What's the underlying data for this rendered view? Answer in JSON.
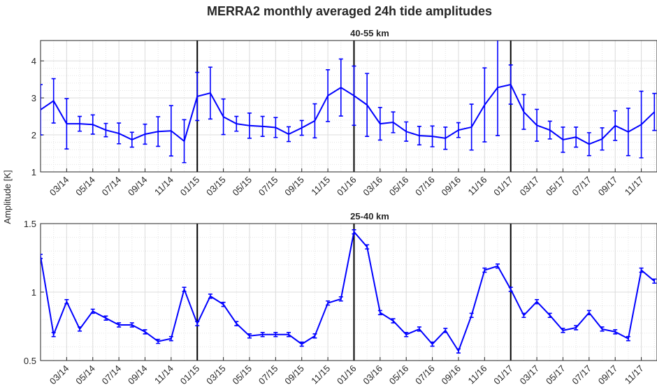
{
  "title": "MERRA2 monthly averaged 24h tide amplitudes",
  "ylabel": "Amplitude [K]",
  "chart_data": [
    {
      "type": "line",
      "subtitle": "40-55 km",
      "color": "#0000ff",
      "grid": true,
      "categories": [
        null,
        null,
        "03/14",
        null,
        "05/14",
        null,
        "07/14",
        null,
        "09/14",
        null,
        "11/14",
        null,
        "01/15",
        null,
        "03/15",
        null,
        "05/15",
        null,
        "07/15",
        null,
        "09/15",
        null,
        "11/15",
        null,
        "01/16",
        null,
        "03/16",
        null,
        "05/16",
        null,
        "07/16",
        null,
        "09/16",
        null,
        "11/16",
        null,
        "01/17",
        null,
        "03/17",
        null,
        "05/17",
        null,
        "07/17",
        null,
        "09/17",
        null,
        "11/17",
        null
      ],
      "values": [
        2.68,
        2.92,
        2.3,
        2.3,
        2.28,
        2.13,
        2.04,
        1.87,
        2.02,
        2.09,
        2.11,
        1.83,
        3.04,
        3.13,
        2.49,
        2.3,
        2.25,
        2.23,
        2.2,
        2.02,
        2.19,
        2.38,
        3.06,
        3.28,
        3.06,
        2.81,
        2.3,
        2.34,
        2.09,
        1.98,
        1.96,
        1.91,
        2.13,
        2.21,
        2.81,
        3.28,
        3.36,
        2.62,
        2.26,
        2.13,
        1.87,
        1.94,
        1.75,
        1.89,
        2.25,
        2.08,
        2.28,
        2.62
      ],
      "errors": [
        0.68,
        0.6,
        0.68,
        0.2,
        0.26,
        0.18,
        0.28,
        0.2,
        0.27,
        0.4,
        0.68,
        0.58,
        0.65,
        0.7,
        0.48,
        0.2,
        0.34,
        0.27,
        0.27,
        0.2,
        0.2,
        0.46,
        0.7,
        0.77,
        0.8,
        0.85,
        0.44,
        0.28,
        0.26,
        0.25,
        0.28,
        0.3,
        0.2,
        0.62,
        1.0,
        1.3,
        0.53,
        0.47,
        0.43,
        0.24,
        0.34,
        0.27,
        0.31,
        0.3,
        0.4,
        0.64,
        0.9,
        0.5
      ],
      "ylim": [
        1,
        4.55
      ],
      "yticks": [
        1,
        2,
        3,
        4
      ]
    },
    {
      "type": "line",
      "subtitle": "25-40 km",
      "color": "#0000ff",
      "grid": true,
      "categories": [
        null,
        null,
        "03/14",
        null,
        "05/14",
        null,
        "07/14",
        null,
        "09/14",
        null,
        "11/14",
        null,
        "01/15",
        null,
        "03/15",
        null,
        "05/15",
        null,
        "07/15",
        null,
        "09/15",
        null,
        "11/15",
        null,
        "01/16",
        null,
        "03/16",
        null,
        "05/16",
        null,
        "07/16",
        null,
        "09/16",
        null,
        "11/16",
        null,
        "01/17",
        null,
        "03/17",
        null,
        "05/17",
        null,
        "07/17",
        null,
        "09/17",
        null,
        "11/17",
        null
      ],
      "values": [
        1.26,
        0.69,
        0.93,
        0.73,
        0.86,
        0.81,
        0.76,
        0.76,
        0.71,
        0.64,
        0.66,
        1.02,
        0.77,
        0.97,
        0.91,
        0.77,
        0.68,
        0.69,
        0.69,
        0.69,
        0.62,
        0.68,
        0.92,
        0.95,
        1.44,
        1.33,
        0.85,
        0.79,
        0.69,
        0.73,
        0.62,
        0.72,
        0.57,
        0.83,
        1.16,
        1.19,
        1.02,
        0.83,
        0.93,
        0.83,
        0.72,
        0.74,
        0.85,
        0.73,
        0.71,
        0.66,
        1.16,
        1.08
      ],
      "errors": [
        0.015,
        0.015,
        0.015,
        0.015,
        0.015,
        0.015,
        0.015,
        0.015,
        0.015,
        0.015,
        0.015,
        0.015,
        0.015,
        0.015,
        0.015,
        0.015,
        0.015,
        0.015,
        0.015,
        0.015,
        0.015,
        0.015,
        0.015,
        0.015,
        0.015,
        0.015,
        0.015,
        0.015,
        0.015,
        0.015,
        0.015,
        0.015,
        0.015,
        0.015,
        0.015,
        0.015,
        0.015,
        0.015,
        0.015,
        0.015,
        0.015,
        0.015,
        0.015,
        0.015,
        0.015,
        0.015,
        0.015,
        0.015
      ],
      "ylim": [
        0.5,
        1.5
      ],
      "yticks": [
        0.5,
        1,
        1.5
      ]
    }
  ]
}
